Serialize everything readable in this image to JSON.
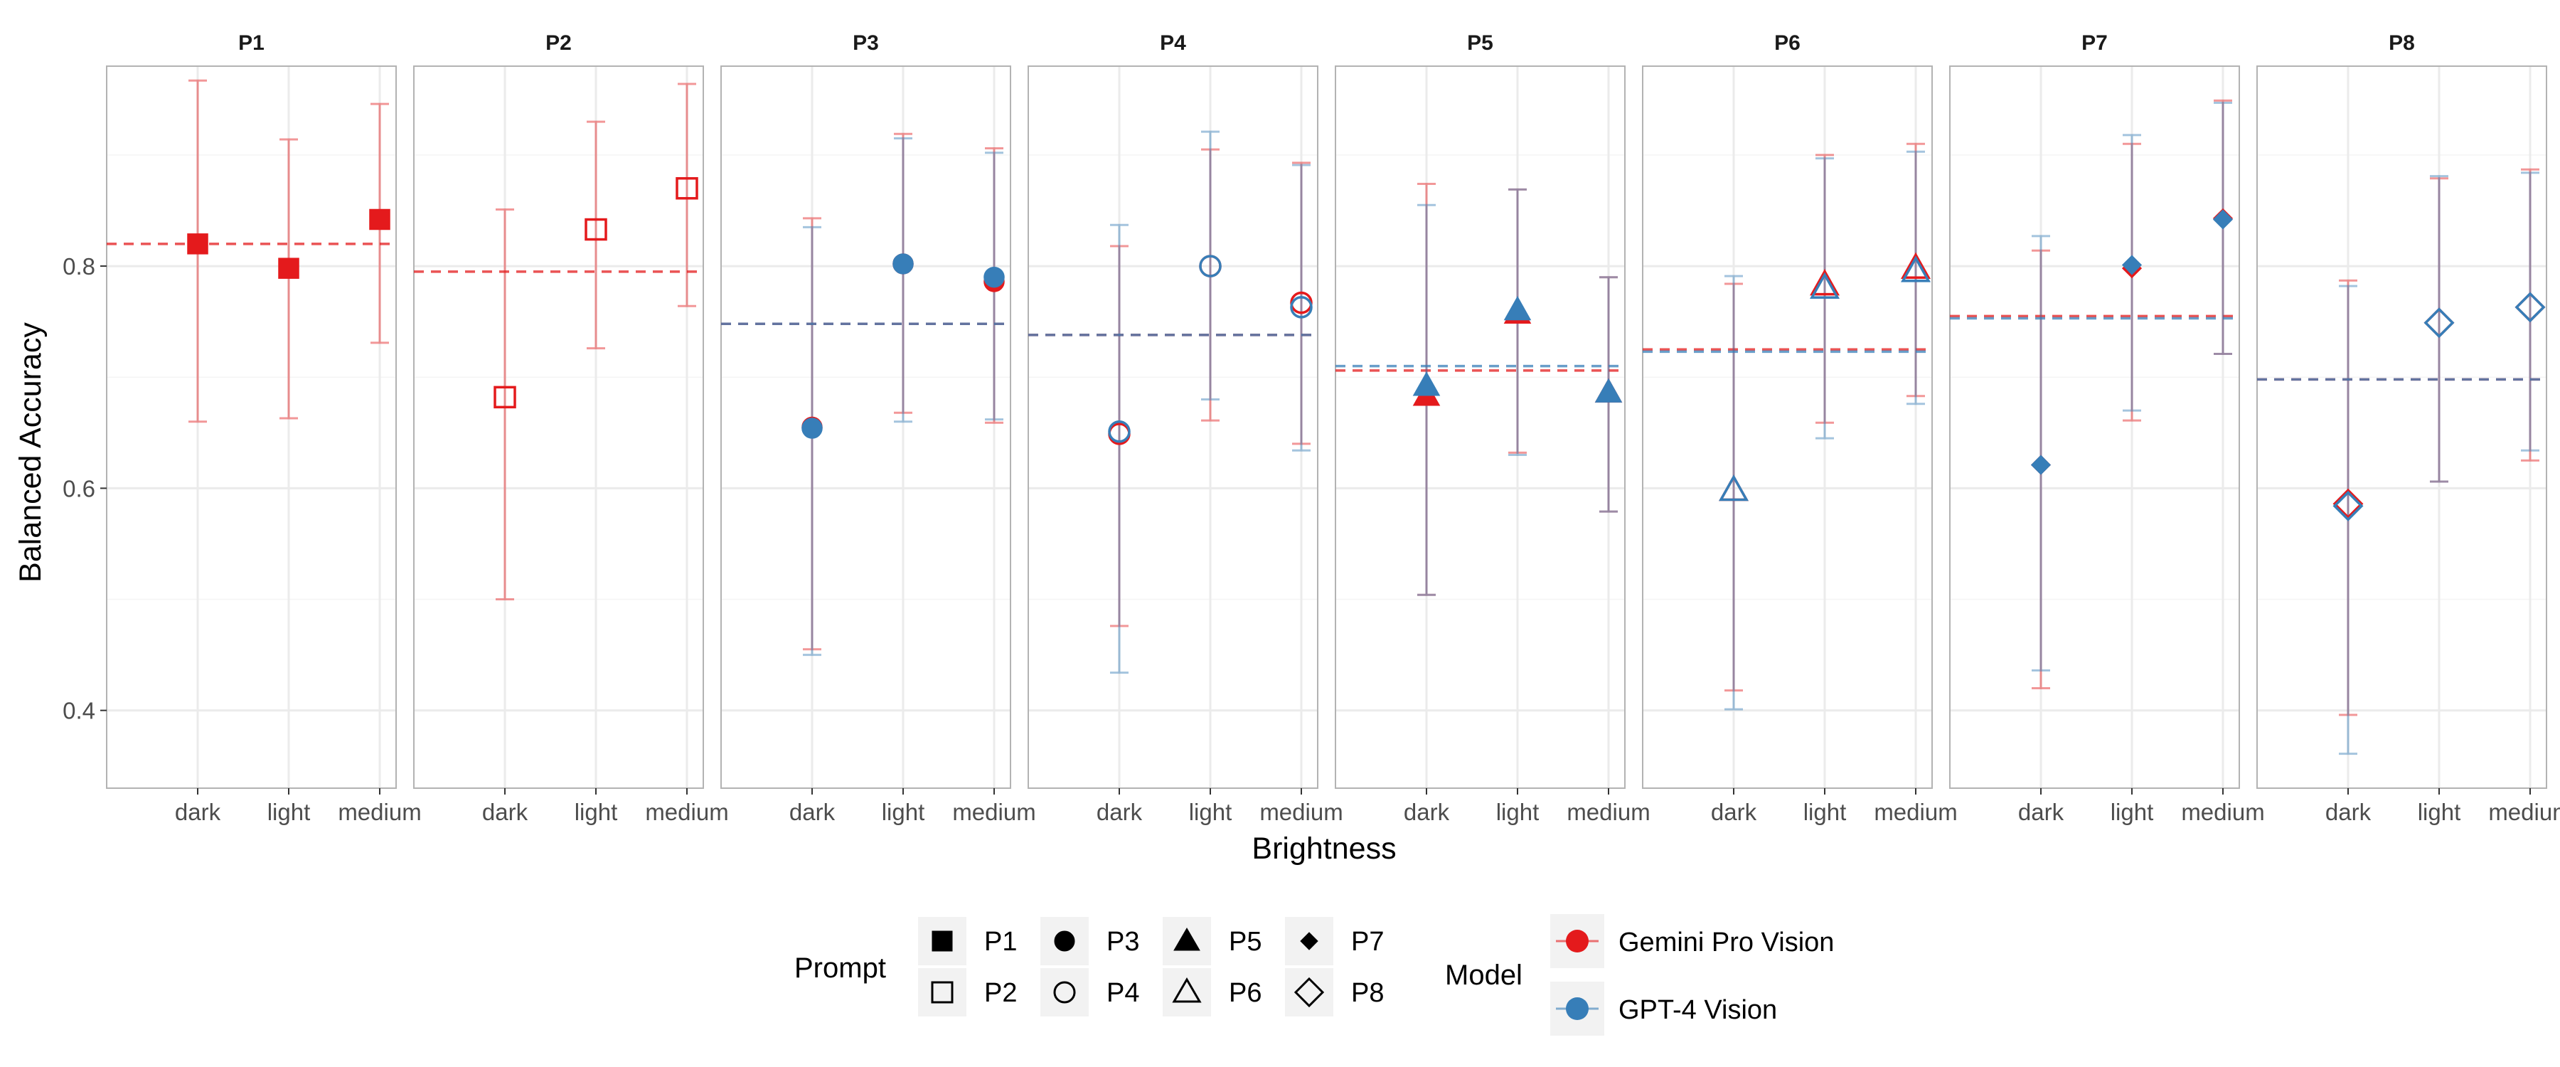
{
  "chart_data": {
    "type": "scatter",
    "panels": [
      "P1",
      "P2",
      "P3",
      "P4",
      "P5",
      "P6",
      "P7",
      "P8"
    ],
    "categories": [
      "dark",
      "light",
      "medium"
    ],
    "xlabel": "Brightness",
    "ylabel": "Balanced Accuracy",
    "ylim": [
      0.33,
      0.98
    ],
    "yticks": [
      "0.4",
      "0.6",
      "0.8"
    ],
    "grid": true,
    "legend_placement": "bottom",
    "legend": {
      "prompt_title": "Prompt",
      "prompt_entries": [
        "P1",
        "P2",
        "P3",
        "P4",
        "P5",
        "P6",
        "P7",
        "P8"
      ],
      "model_title": "Model",
      "model_entries": [
        "Gemini Pro Vision",
        "GPT-4 Vision"
      ]
    },
    "shapes": {
      "P1": "filled-square",
      "P2": "open-square",
      "P3": "filled-circle",
      "P4": "open-circle",
      "P5": "filled-triangle",
      "P6": "open-triangle",
      "P7": "filled-diamond",
      "P8": "open-diamond"
    },
    "colors": {
      "Gemini Pro Vision": "#e41a1c",
      "GPT-4 Vision": "#377eb8",
      "panel_border": "#b3b3b3",
      "grid": "#ebebeb"
    },
    "series": [
      {
        "name": "Gemini Pro Vision",
        "panels": {
          "P1": {
            "mean": 0.82,
            "values": [
              0.82,
              0.798,
              0.842
            ],
            "lower": [
              0.66,
              0.663,
              0.731
            ],
            "upper": [
              0.967,
              0.914,
              0.946
            ]
          },
          "P2": {
            "mean": 0.795,
            "values": [
              0.682,
              0.833,
              0.87
            ],
            "lower": [
              0.5,
              0.726,
              0.764
            ],
            "upper": [
              0.851,
              0.93,
              0.964
            ]
          },
          "P3": {
            "mean": 0.748,
            "values": [
              0.655,
              0.802,
              0.786
            ],
            "lower": [
              0.455,
              0.668,
              0.659
            ],
            "upper": [
              0.843,
              0.919,
              0.906
            ]
          },
          "P4": {
            "mean": 0.738,
            "values": [
              0.649,
              0.8,
              0.767
            ],
            "lower": [
              0.476,
              0.661,
              0.64
            ],
            "upper": [
              0.818,
              0.905,
              0.893
            ]
          },
          "P5": {
            "mean": 0.706,
            "values": [
              0.683,
              0.757,
              0.686
            ],
            "lower": [
              0.504,
              0.632,
              0.579
            ],
            "upper": [
              0.874,
              0.869,
              0.79
            ]
          },
          "P6": {
            "mean": 0.725,
            "values": [
              0.598,
              0.783,
              0.798
            ],
            "lower": [
              0.418,
              0.659,
              0.683
            ],
            "upper": [
              0.784,
              0.9,
              0.91
            ]
          },
          "P7": {
            "mean": 0.755,
            "values": [
              0.621,
              0.798,
              0.843
            ],
            "lower": [
              0.42,
              0.661,
              0.721
            ],
            "upper": [
              0.814,
              0.91,
              0.949
            ]
          },
          "P8": {
            "mean": 0.698,
            "values": [
              0.586,
              0.749,
              0.763
            ],
            "lower": [
              0.396,
              0.606,
              0.625
            ],
            "upper": [
              0.787,
              0.879,
              0.887
            ]
          }
        }
      },
      {
        "name": "GPT-4 Vision",
        "panels": {
          "P3": {
            "mean": 0.748,
            "values": [
              0.654,
              0.802,
              0.79
            ],
            "lower": [
              0.45,
              0.66,
              0.662
            ],
            "upper": [
              0.835,
              0.915,
              0.902
            ]
          },
          "P4": {
            "mean": 0.738,
            "values": [
              0.651,
              0.8,
              0.763
            ],
            "lower": [
              0.434,
              0.68,
              0.634
            ],
            "upper": [
              0.837,
              0.921,
              0.891
            ]
          },
          "P5": {
            "mean": 0.71,
            "values": [
              0.692,
              0.76,
              0.686
            ],
            "lower": [
              0.504,
              0.63,
              0.579
            ],
            "upper": [
              0.855,
              0.869,
              0.79
            ]
          },
          "P6": {
            "mean": 0.723,
            "values": [
              0.598,
              0.78,
              0.795
            ],
            "lower": [
              0.401,
              0.645,
              0.676
            ],
            "upper": [
              0.791,
              0.897,
              0.903
            ]
          },
          "P7": {
            "mean": 0.753,
            "values": [
              0.621,
              0.801,
              0.842
            ],
            "lower": [
              0.436,
              0.67,
              0.721
            ],
            "upper": [
              0.827,
              0.918,
              0.947
            ]
          },
          "P8": {
            "mean": 0.698,
            "values": [
              0.584,
              0.749,
              0.763
            ],
            "lower": [
              0.361,
              0.606,
              0.634
            ],
            "upper": [
              0.782,
              0.881,
              0.884
            ]
          }
        }
      }
    ]
  }
}
